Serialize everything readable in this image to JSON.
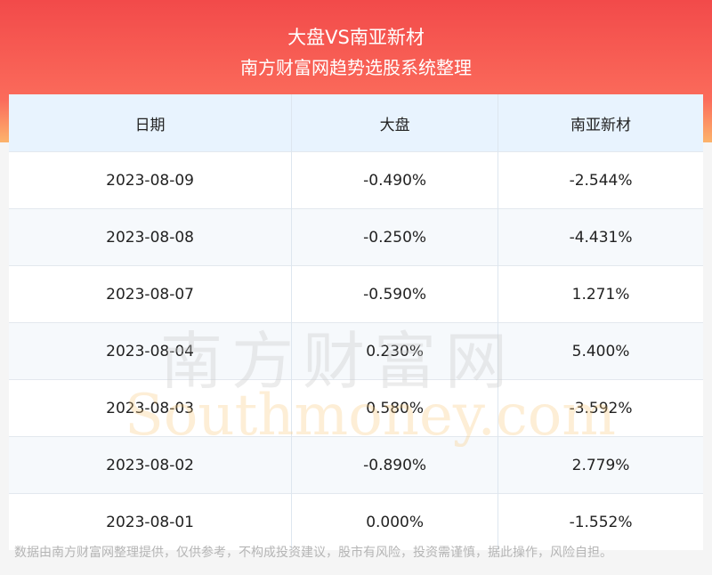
{
  "header": {
    "title": "大盘VS南亚新材",
    "subtitle": "南方财富网趋势选股系统整理"
  },
  "table": {
    "columns": [
      "日期",
      "大盘",
      "南亚新材"
    ],
    "rows": [
      [
        "2023-08-09",
        "-0.490%",
        "-2.544%"
      ],
      [
        "2023-08-08",
        "-0.250%",
        "-4.431%"
      ],
      [
        "2023-08-07",
        "-0.590%",
        "1.271%"
      ],
      [
        "2023-08-04",
        "0.230%",
        "5.400%"
      ],
      [
        "2023-08-03",
        "0.580%",
        "-3.592%"
      ],
      [
        "2023-08-02",
        "-0.890%",
        "2.779%"
      ],
      [
        "2023-08-01",
        "0.000%",
        "-1.552%"
      ]
    ]
  },
  "watermark": {
    "cn": "南方财富网",
    "en": "Southmoney.com"
  },
  "footer": "数据由南方财富网整理提供，仅供参考，不构成投资建议，股市有风险，投资需谨慎，据此操作，风险自担。"
}
